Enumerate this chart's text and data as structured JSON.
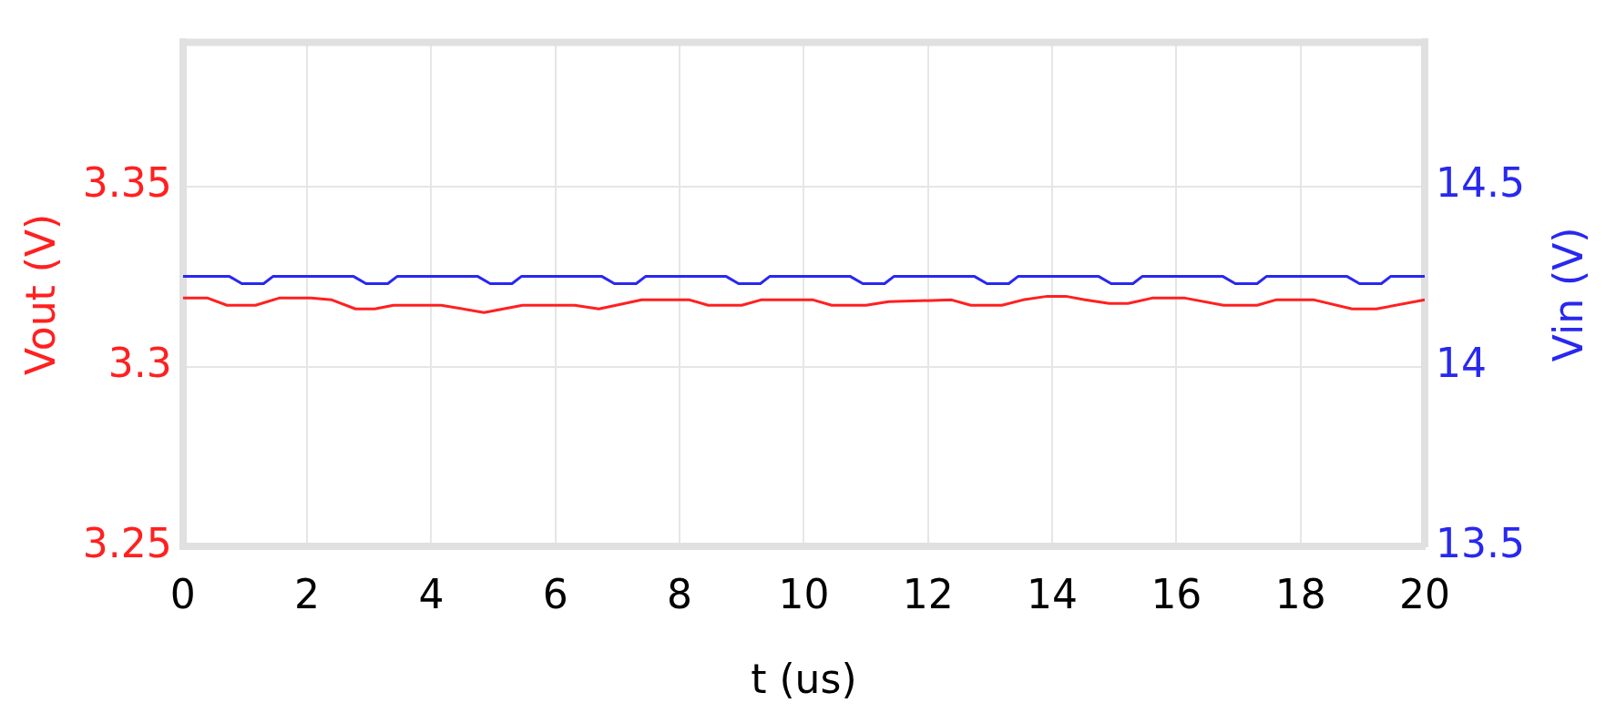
{
  "chart_data": {
    "type": "line",
    "xlabel": "t (us)",
    "ylabel": "Vout (V)",
    "y2label": "Vin (V)",
    "xlim": [
      0,
      20
    ],
    "xticks": [
      0,
      2,
      4,
      6,
      8,
      10,
      12,
      14,
      16,
      18,
      20
    ],
    "ylim": [
      3.25,
      3.39
    ],
    "yticks": [
      3.25,
      3.3,
      3.35
    ],
    "y2lim": [
      13.5,
      14.9
    ],
    "y2ticks": [
      13.5,
      14,
      14.5
    ],
    "grid": true,
    "marker": "none",
    "series": [
      {
        "color": "#ff2020",
        "axis": "y",
        "x": [
          0,
          0.4,
          0.71,
          1.17,
          1.55,
          2.06,
          2.4,
          2.78,
          3.09,
          3.39,
          4.16,
          4.85,
          5.47,
          6.31,
          6.7,
          7.39,
          8.16,
          8.46,
          9,
          9.31,
          10.15,
          10.45,
          11,
          11.37,
          12.38,
          12.69,
          13.19,
          13.53,
          13.92,
          14.22,
          14.53,
          14.92,
          15.22,
          15.61,
          16.14,
          16.76,
          17.3,
          17.6,
          18.22,
          18.83,
          19.22,
          20
        ],
        "values": [
          3.319,
          3.319,
          3.317,
          3.317,
          3.319,
          3.319,
          3.3185,
          3.316,
          3.316,
          3.317,
          3.317,
          3.315,
          3.317,
          3.317,
          3.316,
          3.3185,
          3.3185,
          3.317,
          3.317,
          3.3185,
          3.3185,
          3.317,
          3.317,
          3.318,
          3.3185,
          3.317,
          3.317,
          3.3185,
          3.3195,
          3.3195,
          3.3185,
          3.3175,
          3.3175,
          3.319,
          3.319,
          3.317,
          3.317,
          3.3185,
          3.3185,
          3.316,
          3.316,
          3.3185
        ]
      },
      {
        "color": "#2828f0",
        "axis": "y2",
        "x": [
          0,
          0.75,
          0.95,
          1.3,
          1.45,
          2.75,
          2.95,
          3.3,
          3.45,
          4.75,
          4.95,
          5.3,
          5.45,
          6.75,
          6.95,
          7.3,
          7.45,
          8.75,
          8.95,
          9.3,
          9.45,
          10.75,
          10.95,
          11.3,
          11.45,
          12.75,
          12.95,
          13.3,
          13.45,
          14.75,
          14.95,
          15.3,
          15.45,
          16.75,
          16.95,
          17.3,
          17.45,
          18.75,
          18.95,
          19.3,
          19.45,
          20
        ],
        "values": [
          14.25,
          14.25,
          14.23,
          14.23,
          14.25,
          14.25,
          14.23,
          14.23,
          14.25,
          14.25,
          14.23,
          14.23,
          14.25,
          14.25,
          14.23,
          14.23,
          14.25,
          14.25,
          14.23,
          14.23,
          14.25,
          14.25,
          14.23,
          14.23,
          14.25,
          14.25,
          14.23,
          14.23,
          14.25,
          14.25,
          14.23,
          14.23,
          14.25,
          14.25,
          14.23,
          14.23,
          14.25,
          14.25,
          14.23,
          14.23,
          14.25,
          14.25
        ]
      }
    ]
  }
}
